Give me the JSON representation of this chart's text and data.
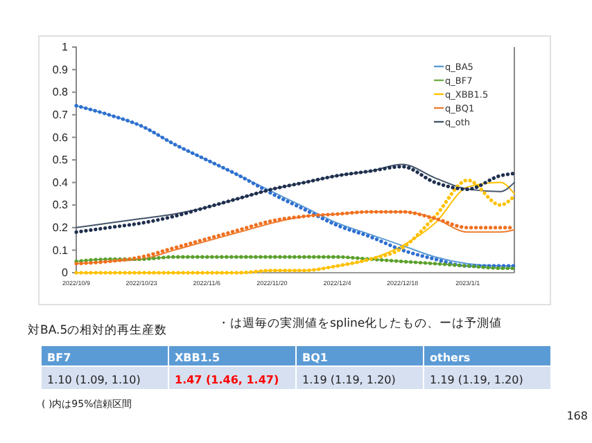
{
  "chart_data": {
    "type": "line",
    "x": [
      "2022-10-09",
      "2022-10-16",
      "2022-10-23",
      "2022-10-30",
      "2022-11-06",
      "2022-11-13",
      "2022-11-20",
      "2022-11-27",
      "2022-12-04",
      "2022-12-11",
      "2022-12-18",
      "2022-12-25",
      "2023-01-01",
      "2023-01-08",
      "2023-01-11"
    ],
    "xlim": [
      "2022-10-09",
      "2023-01-11"
    ],
    "xticks": [
      {
        "value": "2022-10-09",
        "label": "2022/10/9"
      },
      {
        "value": "2022-10-23",
        "label": "2022/10/23"
      },
      {
        "value": "2022-11-06",
        "label": "2022/11/6"
      },
      {
        "value": "2022-11-20",
        "label": "2022/11/20"
      },
      {
        "value": "2022-12-04",
        "label": "2022/12/4"
      },
      {
        "value": "2022-12-18",
        "label": "2022/12/18"
      },
      {
        "value": "2023-01-01",
        "label": "2023/1/1"
      }
    ],
    "ylim": [
      0,
      1
    ],
    "yticks": [
      0,
      0.1,
      0.2,
      0.3,
      0.4,
      0.5,
      0.6,
      0.7,
      0.8,
      0.9,
      1
    ],
    "legend": "top right",
    "grid": false,
    "series": [
      {
        "name": "q_BA5",
        "color": "#5b9bd5",
        "line_style": "solid",
        "values": [
          0.74,
          0.7,
          0.65,
          0.57,
          0.5,
          0.43,
          0.36,
          0.29,
          0.22,
          0.17,
          0.12,
          0.07,
          0.04,
          0.03,
          0.03
        ]
      },
      {
        "name": "q_BF7",
        "color": "#70ad47",
        "line_style": "solid",
        "values": [
          0.05,
          0.06,
          0.06,
          0.07,
          0.07,
          0.07,
          0.07,
          0.07,
          0.07,
          0.06,
          0.05,
          0.04,
          0.03,
          0.02,
          0.02
        ]
      },
      {
        "name": "q_XBB1.5",
        "color": "#ffc000",
        "line_style": "solid",
        "values": [
          0,
          0,
          0,
          0,
          0,
          0,
          0.01,
          0.01,
          0.03,
          0.06,
          0.12,
          0.22,
          0.38,
          0.4,
          0.35
        ]
      },
      {
        "name": "q_BQ1",
        "color": "#ed7d31",
        "line_style": "solid",
        "values": [
          0.04,
          0.05,
          0.06,
          0.1,
          0.14,
          0.18,
          0.22,
          0.25,
          0.26,
          0.27,
          0.27,
          0.24,
          0.18,
          0.18,
          0.19
        ]
      },
      {
        "name": "q_oth",
        "color": "#44546a",
        "line_style": "solid",
        "values": [
          0.2,
          0.22,
          0.24,
          0.26,
          0.29,
          0.33,
          0.37,
          0.4,
          0.43,
          0.45,
          0.48,
          0.42,
          0.37,
          0.36,
          0.4
        ]
      },
      {
        "color": "#2e6fd0",
        "line_style": "dotted",
        "values": [
          0.74,
          0.7,
          0.65,
          0.57,
          0.5,
          0.43,
          0.35,
          0.28,
          0.21,
          0.16,
          0.1,
          0.06,
          0.03,
          0.03,
          0.03
        ]
      },
      {
        "color": "#5aa02c",
        "line_style": "dotted",
        "values": [
          0.05,
          0.06,
          0.06,
          0.07,
          0.07,
          0.07,
          0.07,
          0.07,
          0.07,
          0.06,
          0.05,
          0.04,
          0.03,
          0.02,
          0.02
        ]
      },
      {
        "color": "#ffc000",
        "line_style": "dotted",
        "values": [
          0,
          0,
          0,
          0,
          0,
          0,
          0.01,
          0.01,
          0.03,
          0.06,
          0.11,
          0.25,
          0.41,
          0.3,
          0.34
        ]
      },
      {
        "color": "#f07020",
        "line_style": "dotted",
        "values": [
          0.04,
          0.05,
          0.07,
          0.11,
          0.15,
          0.19,
          0.23,
          0.25,
          0.26,
          0.27,
          0.27,
          0.24,
          0.2,
          0.2,
          0.2
        ]
      },
      {
        "color": "#1f2f4f",
        "line_style": "dotted",
        "values": [
          0.18,
          0.2,
          0.22,
          0.25,
          0.29,
          0.33,
          0.37,
          0.4,
          0.43,
          0.45,
          0.47,
          0.4,
          0.37,
          0.43,
          0.44
        ]
      }
    ],
    "annotations": [
      "対BA.5の相対的再生産数",
      "・は週毎の実測値をspline化したもの、ーは予測値",
      "BF7",
      "XBB1.5",
      "BQ1",
      "others",
      "1.10 (1.09, 1.10)",
      "1.47 (1.46, 1.47)",
      "1.19 (1.19, 1.20)",
      "1.19 (1.19, 1.20)",
      "( )内は95%信頼区間",
      "168"
    ]
  }
}
